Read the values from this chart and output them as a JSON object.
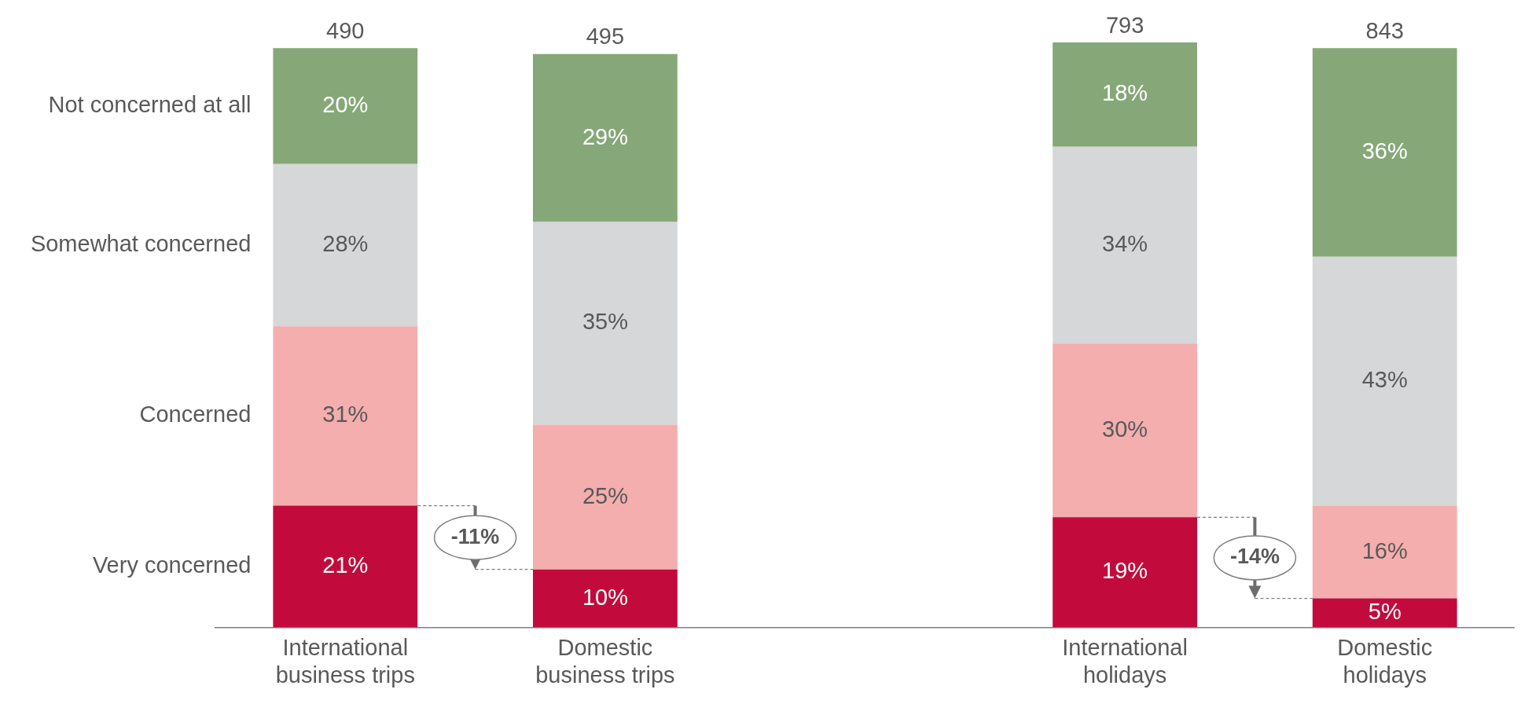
{
  "chart_data": {
    "type": "bar",
    "stacked": true,
    "categories": [
      "International business trips",
      "Domestic business trips",
      null,
      "International holidays",
      "Domestic holidays"
    ],
    "series": [
      {
        "name": "Very concerned",
        "color": "#c20b3c",
        "values": [
          21,
          10,
          null,
          19,
          5
        ],
        "value_labels": [
          "21%",
          "10%",
          null,
          "19%",
          "5%"
        ]
      },
      {
        "name": "Concerned",
        "color": "#f4aeae",
        "values": [
          31,
          25,
          null,
          30,
          16
        ],
        "value_labels": [
          "31%",
          "25%",
          null,
          "30%",
          "16%"
        ]
      },
      {
        "name": "Somewhat concerned",
        "color": "#d6d7d9",
        "values": [
          28,
          35,
          null,
          34,
          43
        ],
        "value_labels": [
          "28%",
          "35%",
          null,
          "34%",
          "43%"
        ]
      },
      {
        "name": "Not concerned at all",
        "color": "#86a878",
        "values": [
          20,
          29,
          null,
          18,
          36
        ],
        "value_labels": [
          "20%",
          "29%",
          null,
          "18%",
          "36%"
        ]
      }
    ],
    "annotations": [
      {
        "text": "490",
        "x": "International business trips",
        "y": 100
      },
      {
        "text": "495",
        "x": "Domestic business trips",
        "y": 99
      },
      {
        "text": "793",
        "x": "International holidays",
        "y": 101
      },
      {
        "text": "843",
        "x": "Domestic holidays",
        "y": 100
      },
      "-11%",
      "-14%"
    ]
  }
}
